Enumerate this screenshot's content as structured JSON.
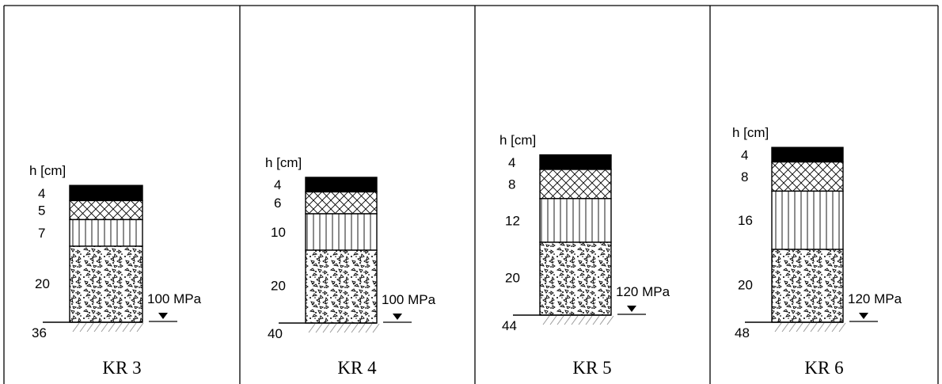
{
  "panels": [
    {
      "caption": "KR 3",
      "unit_label": "h [cm]",
      "layers": [
        {
          "thickness_label": "4",
          "material": "solid-black"
        },
        {
          "thickness_label": "5",
          "material": "crosshatch"
        },
        {
          "thickness_label": "7",
          "material": "vertical-lines"
        },
        {
          "thickness_label": "20",
          "material": "gravel"
        }
      ],
      "total_label": "36",
      "modulus_label": "100 MPa"
    },
    {
      "caption": "KR 4",
      "unit_label": "h [cm]",
      "layers": [
        {
          "thickness_label": "4",
          "material": "solid-black"
        },
        {
          "thickness_label": "6",
          "material": "crosshatch"
        },
        {
          "thickness_label": "10",
          "material": "vertical-lines"
        },
        {
          "thickness_label": "20",
          "material": "gravel"
        }
      ],
      "total_label": "40",
      "modulus_label": "100 MPa"
    },
    {
      "caption": "KR 5",
      "unit_label": "h [cm]",
      "layers": [
        {
          "thickness_label": "4",
          "material": "solid-black"
        },
        {
          "thickness_label": "8",
          "material": "crosshatch"
        },
        {
          "thickness_label": "12",
          "material": "vertical-lines"
        },
        {
          "thickness_label": "20",
          "material": "gravel"
        }
      ],
      "total_label": "44",
      "modulus_label": "120 MPa"
    },
    {
      "caption": "KR 6",
      "unit_label": "h [cm]",
      "layers": [
        {
          "thickness_label": "4",
          "material": "solid-black"
        },
        {
          "thickness_label": "8",
          "material": "crosshatch"
        },
        {
          "thickness_label": "16",
          "material": "vertical-lines"
        },
        {
          "thickness_label": "20",
          "material": "gravel"
        }
      ],
      "total_label": "48",
      "modulus_label": "120 MPa"
    }
  ],
  "colors": {
    "ink": "#000000",
    "background": "#ffffff",
    "subgrade_hatch": "#9a9a9a"
  }
}
